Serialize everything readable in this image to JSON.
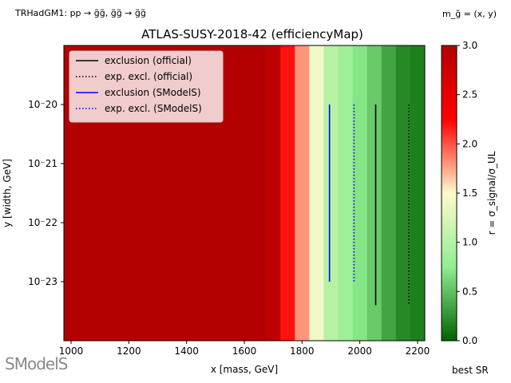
{
  "header": {
    "top_left": "TRHadGM1: pp → g̃g̃, g̃g̃ → g̃g̃",
    "top_right": "m_g̃ = (x, y)",
    "title": "ATLAS-SUSY-2018-42 (efficiencyMap)",
    "best_sr": "best SR",
    "logo_text": "SModelS"
  },
  "chart_data": {
    "type": "heatmap",
    "title": "ATLAS-SUSY-2018-42 (efficiencyMap)",
    "xlabel": "x [mass, GeV]",
    "ylabel": "y [width, GeV]",
    "colorbar_label": "r = σ_signal/σ_UL",
    "xlim": [
      975,
      2225
    ],
    "ylim": [
      1e-24,
      1e-19
    ],
    "yscale": "log",
    "x_ticks": [
      1000,
      1200,
      1400,
      1600,
      1800,
      2000,
      2200
    ],
    "x_tick_labels": [
      "1000",
      "1200",
      "1400",
      "1600",
      "1800",
      "2000",
      "2200"
    ],
    "y_ticks": [
      1e-20,
      1e-21,
      1e-22,
      1e-23
    ],
    "y_tick_labels": [
      "10⁻20",
      "10⁻21",
      "10⁻22",
      "10⁻23"
    ],
    "colorbar": {
      "min": 0.0,
      "max": 3.0,
      "ticks": [
        "0.0",
        "0.5",
        "1.0",
        "1.5",
        "2.0",
        "2.5",
        "3.0"
      ],
      "colors": [
        "#006400",
        "#90ee90",
        "#fffacd",
        "#ff0000",
        "#b30000"
      ]
    },
    "cells": [
      {
        "x0": 975,
        "x1": 1675,
        "r": 3.0
      },
      {
        "x0": 1675,
        "x1": 1725,
        "r": 2.9
      },
      {
        "x0": 1725,
        "x1": 1775,
        "r": 2.2
      },
      {
        "x0": 1775,
        "x1": 1825,
        "r": 1.8
      },
      {
        "x0": 1825,
        "x1": 1875,
        "r": 1.4
      },
      {
        "x0": 1875,
        "x1": 1925,
        "r": 1.0
      },
      {
        "x0": 1925,
        "x1": 1975,
        "r": 0.85
      },
      {
        "x0": 1975,
        "x1": 2025,
        "r": 0.7
      },
      {
        "x0": 2025,
        "x1": 2075,
        "r": 0.55
      },
      {
        "x0": 2075,
        "x1": 2125,
        "r": 0.35
      },
      {
        "x0": 2125,
        "x1": 2175,
        "r": 0.2
      },
      {
        "x0": 2175,
        "x1": 2225,
        "r": 0.15
      }
    ],
    "lines": [
      {
        "name": "exclusion (official)",
        "color": "#000000",
        "dash": false,
        "x": 2055,
        "y_top": 1e-20,
        "y_bottom": 4e-24
      },
      {
        "name": "exp. excl. (official)",
        "color": "#000000",
        "dash": true,
        "x": 2170,
        "y_top": 1e-20,
        "y_bottom": 4e-24
      },
      {
        "name": "exclusion (SModelS)",
        "color": "#0000ff",
        "dash": false,
        "x": 1895,
        "y_top": 1e-20,
        "y_bottom": 1e-23
      },
      {
        "name": "exp. excl. (SModelS)",
        "color": "#0000ff",
        "dash": true,
        "x": 1980,
        "y_top": 1e-20,
        "y_bottom": 1e-23
      }
    ],
    "legend_position": "top-left",
    "grid": false
  }
}
